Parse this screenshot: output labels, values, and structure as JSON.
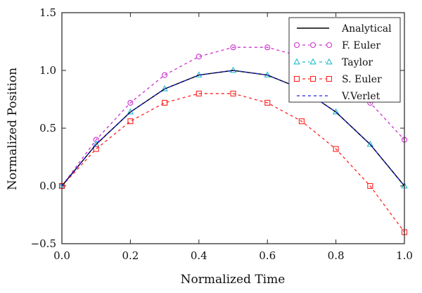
{
  "chart_data": {
    "type": "line",
    "xlabel": "Normalized Time",
    "ylabel": "Normalized Position",
    "xlim": [
      0.0,
      1.0
    ],
    "ylim": [
      -0.5,
      1.5
    ],
    "xticks": [
      "0.0",
      "0.2",
      "0.4",
      "0.6",
      "0.8",
      "1.0"
    ],
    "yticks": [
      "−0.5",
      "0.0",
      "0.5",
      "1.0",
      "1.5"
    ],
    "xtick_values": [
      0,
      0.2,
      0.4,
      0.6,
      0.8,
      1.0
    ],
    "ytick_values": [
      -0.5,
      0,
      0.5,
      1.0,
      1.5
    ],
    "grid": false,
    "legend": "top-right",
    "x": [
      0,
      0.1,
      0.2,
      0.3,
      0.4,
      0.5,
      0.6,
      0.7,
      0.8,
      0.9,
      1.0
    ],
    "series": [
      {
        "name": "Analytical",
        "color": "#000000",
        "style": "solid",
        "marker": "none",
        "values": [
          0,
          0.36,
          0.64,
          0.84,
          0.96,
          1.0,
          0.96,
          0.84,
          0.64,
          0.36,
          0
        ]
      },
      {
        "name": "F. Euler",
        "color": "#cc33cc",
        "style": "dashed",
        "marker": "circle",
        "values": [
          0,
          0.4,
          0.72,
          0.96,
          1.12,
          1.2,
          1.2,
          1.12,
          0.96,
          0.72,
          0.4
        ]
      },
      {
        "name": "Taylor",
        "color": "#22bbcc",
        "style": "dashed",
        "marker": "triangle",
        "values": [
          0,
          0.36,
          0.64,
          0.84,
          0.96,
          1.0,
          0.96,
          0.84,
          0.64,
          0.36,
          0
        ]
      },
      {
        "name": "S. Euler",
        "color": "#ff2222",
        "style": "dashed",
        "marker": "square",
        "values": [
          0,
          0.32,
          0.56,
          0.72,
          0.8,
          0.8,
          0.72,
          0.56,
          0.32,
          0,
          -0.4
        ]
      },
      {
        "name": "V.Verlet",
        "color": "#2222ee",
        "style": "dashed",
        "marker": "none",
        "values": [
          0,
          0.36,
          0.64,
          0.84,
          0.96,
          1.0,
          0.96,
          0.84,
          0.64,
          0.36,
          0
        ]
      }
    ]
  }
}
